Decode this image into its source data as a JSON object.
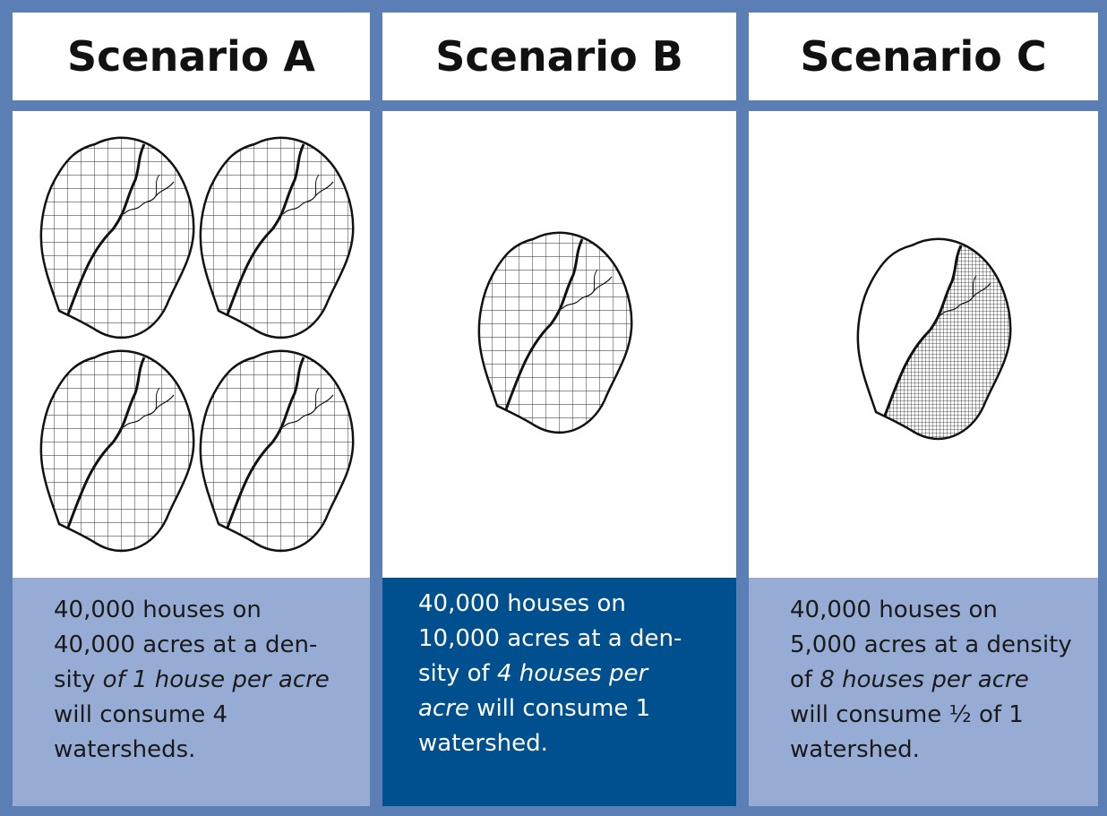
{
  "panels": [
    {
      "title": "Scenario A",
      "lines": [
        [
          {
            "text": "40,000 houses on",
            "italic": false
          }
        ],
        [
          {
            "text": "40,000 acres at a den-",
            "italic": false
          }
        ],
        [
          {
            "text": "sity ",
            "italic": false
          },
          {
            "text": "of 1 house per acre",
            "italic": true
          }
        ],
        [
          {
            "text": "will consume 4",
            "italic": false
          }
        ],
        [
          {
            "text": "watersheds.",
            "italic": false
          }
        ]
      ]
    },
    {
      "title": "Scenario B",
      "lines": [
        [
          {
            "text": "40,000 houses on",
            "italic": false
          }
        ],
        [
          {
            "text": "10,000 acres at a den-",
            "italic": false
          }
        ],
        [
          {
            "text": "sity of ",
            "italic": false
          },
          {
            "text": "4 houses per",
            "italic": true
          }
        ],
        [
          {
            "text": "acre",
            "italic": true
          },
          {
            "text": " will consume 1",
            "italic": false
          }
        ],
        [
          {
            "text": "watershed.",
            "italic": false
          }
        ]
      ]
    },
    {
      "title": "Scenario C",
      "lines": [
        [
          {
            "text": "40,000 houses on",
            "italic": false
          }
        ],
        [
          {
            "text": "5,000 acres at a density",
            "italic": false
          }
        ],
        [
          {
            "text": "of ",
            "italic": false
          },
          {
            "text": "8 houses per acre",
            "italic": true
          }
        ],
        [
          {
            "text": "will consume ½ of 1",
            "italic": false
          }
        ],
        [
          {
            "text": "watershed.",
            "italic": false
          }
        ]
      ]
    }
  ]
}
